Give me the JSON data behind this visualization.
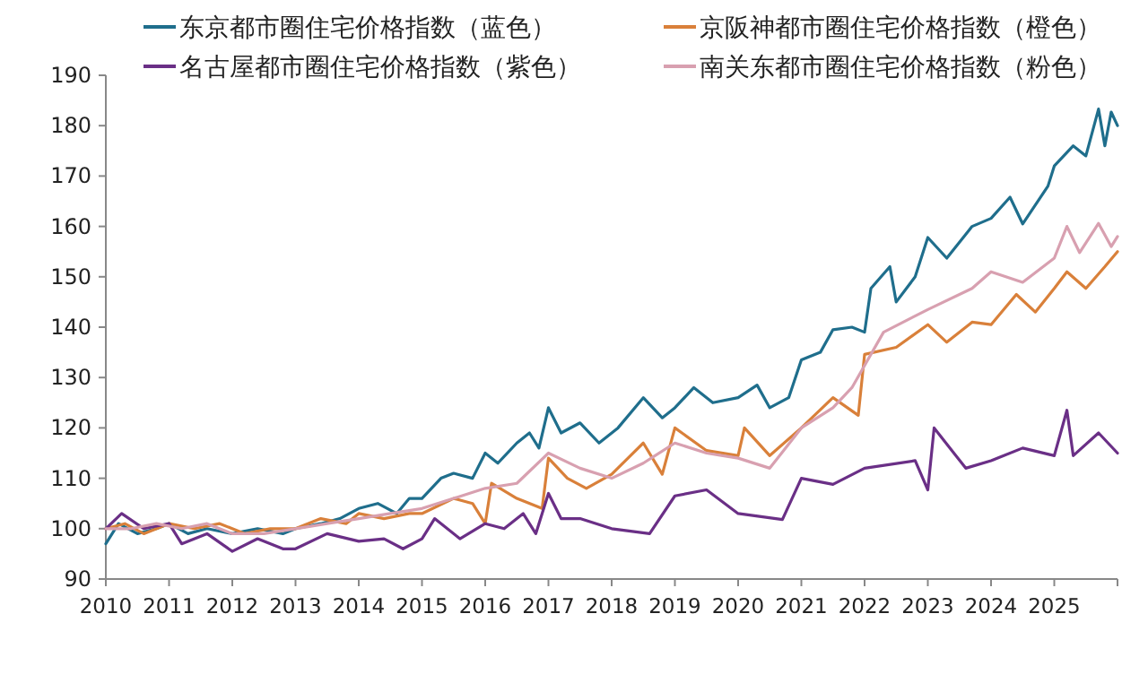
{
  "chart_data": {
    "type": "line",
    "xlim": [
      2010,
      2026
    ],
    "xticks": [
      2010,
      2011,
      2012,
      2013,
      2014,
      2015,
      2016,
      2017,
      2018,
      2019,
      2020,
      2021,
      2022,
      2023,
      2024,
      2025,
      {
        "value": 2026,
        "label": null
      }
    ],
    "ylim": [
      90,
      190
    ],
    "yticks": [
      90,
      100,
      110,
      120,
      130,
      140,
      150,
      160,
      170,
      180,
      190
    ],
    "grid": false,
    "legend": "top",
    "marker": "none",
    "line_style": "solid",
    "series": [
      {
        "name": "东京都市圈住宅价格指数（蓝色）",
        "color": "#1f6e8c",
        "x": [
          2010,
          2010.2,
          2010.5,
          2010.8,
          2011,
          2011.3,
          2011.6,
          2012,
          2012.4,
          2012.8,
          2013,
          2013.4,
          2013.7,
          2014,
          2014.3,
          2014.6,
          2014.8,
          2015,
          2015.3,
          2015.5,
          2015.8,
          2016,
          2016.2,
          2016.5,
          2016.7,
          2016.85,
          2017,
          2017.2,
          2017.5,
          2017.8,
          2018.1,
          2018.5,
          2018.8,
          2019,
          2019.3,
          2019.6,
          2020,
          2020.3,
          2020.5,
          2020.8,
          2021,
          2021.3,
          2021.5,
          2021.8,
          2022,
          2022.1,
          2022.4,
          2022.5,
          2022.8,
          2023,
          2023.3,
          2023.7,
          2024,
          2024.3,
          2024.5,
          2024.9,
          2025,
          2025.3,
          2025.5,
          2025.7,
          2025.8,
          2025.9,
          2026
        ],
        "values": [
          97,
          101,
          99,
          100,
          101,
          99,
          100,
          99,
          100,
          99,
          100,
          101,
          102,
          104,
          105,
          103,
          106,
          106,
          110,
          111,
          110,
          115,
          113,
          117,
          119,
          116,
          124,
          119,
          121,
          117,
          120,
          126,
          122,
          124,
          128,
          125,
          126,
          128.5,
          124,
          126,
          133.5,
          135,
          139.5,
          140,
          139,
          147.7,
          152,
          145,
          150,
          157.8,
          153.7,
          160,
          161.6,
          165.8,
          160.5,
          168,
          172,
          176,
          174,
          183.3,
          176,
          182.7,
          180
        ]
      },
      {
        "name": "京阪神都市圈住宅价格指数（橙色）",
        "color": "#d9803a",
        "x": [
          2010,
          2010.3,
          2010.6,
          2011,
          2011.4,
          2011.8,
          2012.2,
          2012.6,
          2013,
          2013.4,
          2013.8,
          2014,
          2014.4,
          2014.8,
          2015,
          2015.5,
          2015.8,
          2016,
          2016.1,
          2016.5,
          2016.9,
          2017,
          2017.3,
          2017.6,
          2018,
          2018.5,
          2018.8,
          2019,
          2019.5,
          2020,
          2020.1,
          2020.5,
          2021,
          2021.5,
          2021.9,
          2022,
          2022.5,
          2023,
          2023.3,
          2023.7,
          2024,
          2024.4,
          2024.7,
          2025,
          2025.2,
          2025.5,
          2025.8,
          2026
        ],
        "values": [
          100,
          101,
          99,
          101,
          100,
          101,
          99,
          100,
          100,
          102,
          101,
          103,
          102,
          103,
          103,
          106,
          105,
          101,
          109,
          106,
          104,
          114,
          110,
          108,
          110.8,
          117,
          110.8,
          120,
          115.5,
          114.5,
          120,
          114.5,
          120,
          126,
          122.5,
          134.6,
          136,
          140.5,
          137,
          141,
          140.5,
          146.5,
          143,
          147.7,
          151,
          147.7,
          152,
          155
        ]
      },
      {
        "name": "名古屋都市圈住宅价格指数（紫色）",
        "color": "#6a2f86",
        "x": [
          2010,
          2010.25,
          2010.6,
          2011,
          2011.2,
          2011.6,
          2012,
          2012.4,
          2012.8,
          2013,
          2013.5,
          2014,
          2014.4,
          2014.7,
          2015,
          2015.2,
          2015.6,
          2016,
          2016.3,
          2016.6,
          2016.8,
          2017,
          2017.2,
          2017.5,
          2018,
          2018.6,
          2019,
          2019.5,
          2020,
          2020.7,
          2021,
          2021.5,
          2022,
          2022.8,
          2023,
          2023.1,
          2023.6,
          2024,
          2024.5,
          2025,
          2025.2,
          2025.3,
          2025.7,
          2026
        ],
        "values": [
          100,
          103,
          100,
          101,
          97,
          99,
          95.5,
          98,
          96,
          96,
          99,
          97.5,
          98,
          96,
          98,
          102,
          98,
          101,
          100,
          103,
          99,
          107,
          102,
          102,
          100,
          99,
          106.5,
          107.7,
          103,
          101.8,
          110,
          108.8,
          112,
          113.5,
          107.7,
          120,
          112,
          113.5,
          116,
          114.5,
          123.5,
          114.5,
          119,
          115
        ]
      },
      {
        "name": "南关东都市圈住宅价格指数（粉色）",
        "color": "#d8a0b0",
        "x": [
          2010,
          2010.4,
          2010.8,
          2011.2,
          2011.6,
          2012,
          2012.5,
          2013,
          2013.5,
          2014,
          2014.5,
          2015,
          2015.5,
          2016,
          2016.5,
          2017,
          2017.5,
          2018,
          2018.5,
          2019,
          2019.5,
          2020,
          2020.5,
          2021,
          2021.5,
          2021.8,
          2022.3,
          2023,
          2023.7,
          2024,
          2024.5,
          2025,
          2025.2,
          2025.4,
          2025.7,
          2025.9,
          2026
        ],
        "values": [
          100,
          100,
          101,
          100,
          101,
          99,
          99,
          100,
          101,
          102,
          103,
          104,
          106,
          108,
          109,
          115,
          112,
          110,
          113,
          117,
          115,
          114,
          112,
          120,
          124,
          128,
          139,
          143.5,
          147.7,
          151,
          148.9,
          153.7,
          160,
          154.8,
          160.6,
          156,
          158
        ]
      }
    ]
  }
}
